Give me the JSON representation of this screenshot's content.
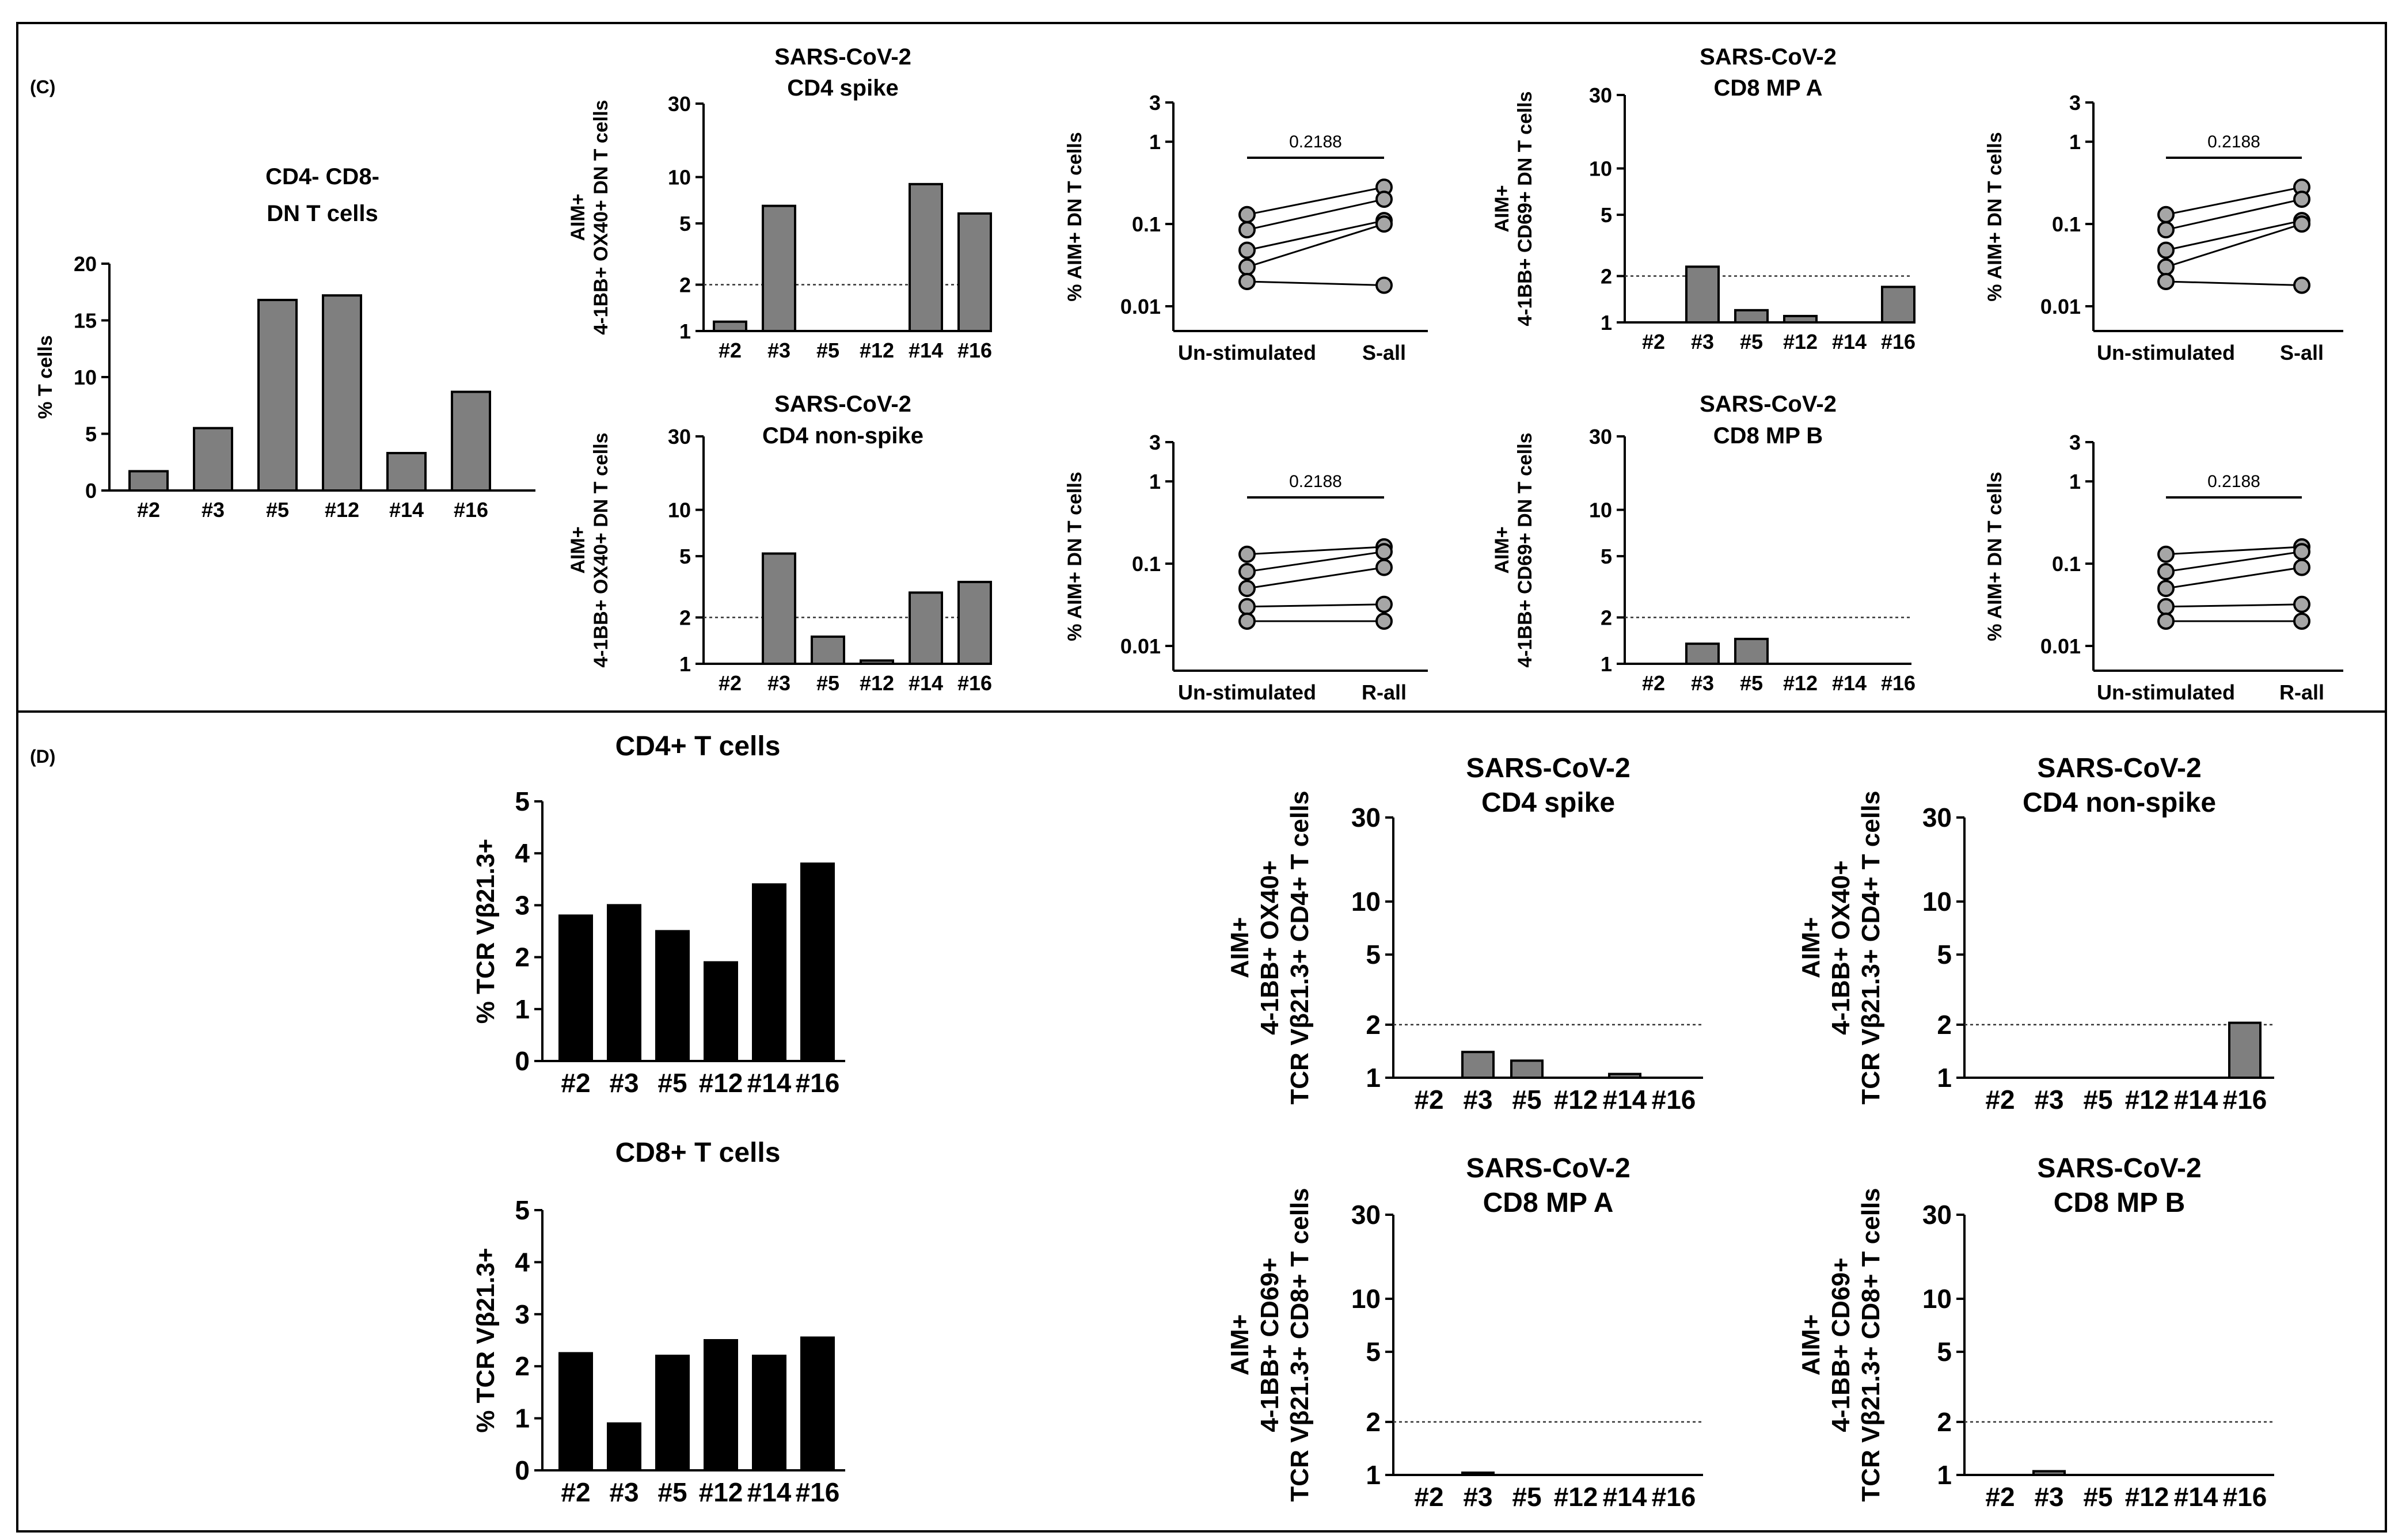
{
  "panels": {
    "c_label": "(C)",
    "d_label": "(D)"
  },
  "colors": {
    "gray_bar": "#7f7f7f",
    "black_bar": "#000000",
    "point_fill": "#a6a6a6",
    "axis": "#000000"
  },
  "chart_data": [
    {
      "id": "c_dn",
      "type": "bar",
      "title": [
        "CD4- CD8-",
        "DN T cells"
      ],
      "ylabel": [
        "% T cells"
      ],
      "yscale": "linear",
      "ylim": [
        0,
        20
      ],
      "yticks": [
        0,
        5,
        10,
        15,
        20
      ],
      "tick_labels": [
        "0",
        "5",
        "10",
        "15",
        "20"
      ],
      "categories": [
        "#2",
        "#3",
        "#5",
        "#12",
        "#14",
        "#16"
      ],
      "values": [
        1.7,
        5.5,
        16.8,
        17.2,
        3.3,
        8.7
      ]
    },
    {
      "id": "c_cd4_spike",
      "type": "bar",
      "title": [
        "SARS-CoV-2",
        "CD4 spike"
      ],
      "ylabel": [
        "AIM+",
        "4-1BB+ OX40+ DN T cells"
      ],
      "yscale": "log",
      "ylim": [
        1,
        30
      ],
      "yticks": [
        1,
        2,
        5,
        10,
        30
      ],
      "tick_labels": [
        "1",
        "2",
        "5",
        "10",
        "30"
      ],
      "threshold": 2,
      "categories": [
        "#2",
        "#3",
        "#5",
        "#12",
        "#14",
        "#16"
      ],
      "values": [
        1.15,
        6.5,
        null,
        null,
        9.0,
        5.8
      ]
    },
    {
      "id": "c_cd4_nonspike",
      "type": "bar",
      "title": [
        "SARS-CoV-2",
        "CD4 non-spike"
      ],
      "ylabel": [
        "AIM+",
        "4-1BB+ OX40+ DN T cells"
      ],
      "yscale": "log",
      "ylim": [
        1,
        30
      ],
      "yticks": [
        1,
        2,
        5,
        10,
        30
      ],
      "tick_labels": [
        "1",
        "2",
        "5",
        "10",
        "30"
      ],
      "threshold": 2,
      "categories": [
        "#2",
        "#3",
        "#5",
        "#12",
        "#14",
        "#16"
      ],
      "values": [
        null,
        5.2,
        1.5,
        1.05,
        2.9,
        3.4
      ]
    },
    {
      "id": "c_cd8_mpa",
      "type": "bar",
      "title": [
        "SARS-CoV-2",
        "CD8 MP A"
      ],
      "ylabel": [
        "AIM+",
        "4-1BB+ CD69+ DN T cells"
      ],
      "yscale": "log",
      "ylim": [
        1,
        30
      ],
      "yticks": [
        1,
        2,
        5,
        10,
        30
      ],
      "tick_labels": [
        "1",
        "2",
        "5",
        "10",
        "30"
      ],
      "threshold": 2,
      "categories": [
        "#2",
        "#3",
        "#5",
        "#12",
        "#14",
        "#16"
      ],
      "values": [
        null,
        2.3,
        1.2,
        1.1,
        null,
        1.7
      ]
    },
    {
      "id": "c_cd8_mpb",
      "type": "bar",
      "title": [
        "SARS-CoV-2",
        "CD8 MP B"
      ],
      "ylabel": [
        "AIM+",
        "4-1BB+ CD69+ DN T cells"
      ],
      "yscale": "log",
      "ylim": [
        1,
        30
      ],
      "yticks": [
        1,
        2,
        5,
        10,
        30
      ],
      "tick_labels": [
        "1",
        "2",
        "5",
        "10",
        "30"
      ],
      "threshold": 2,
      "categories": [
        "#2",
        "#3",
        "#5",
        "#12",
        "#14",
        "#16"
      ],
      "values": [
        null,
        1.35,
        1.45,
        null,
        null,
        null
      ]
    },
    {
      "id": "c_pair_s1",
      "type": "paired",
      "ylabel": [
        "% AIM+ DN T cells"
      ],
      "yscale": "log",
      "ylim": [
        0.005,
        3
      ],
      "yticks": [
        0.01,
        0.1,
        1,
        3
      ],
      "tick_labels": [
        "0.01",
        "0.1",
        "1",
        "3"
      ],
      "categories": [
        "Un-stimulated",
        "S-all"
      ],
      "pvalue": "0.2188",
      "series": [
        {
          "values": [
            0.13,
            0.28
          ]
        },
        {
          "values": [
            0.085,
            0.2
          ]
        },
        {
          "values": [
            0.048,
            0.11
          ]
        },
        {
          "values": [
            0.03,
            0.1
          ]
        },
        {
          "values": [
            0.02,
            0.018
          ]
        }
      ]
    },
    {
      "id": "c_pair_r1",
      "type": "paired",
      "ylabel": [
        "% AIM+ DN T cells"
      ],
      "yscale": "log",
      "ylim": [
        0.005,
        3
      ],
      "yticks": [
        0.01,
        0.1,
        1,
        3
      ],
      "tick_labels": [
        "0.01",
        "0.1",
        "1",
        "3"
      ],
      "categories": [
        "Un-stimulated",
        "R-all"
      ],
      "pvalue": "0.2188",
      "series": [
        {
          "values": [
            0.13,
            0.16
          ]
        },
        {
          "values": [
            0.08,
            0.14
          ]
        },
        {
          "values": [
            0.05,
            0.09
          ]
        },
        {
          "values": [
            0.03,
            0.032
          ]
        },
        {
          "values": [
            0.02,
            0.02
          ]
        }
      ]
    },
    {
      "id": "c_pair_s2",
      "type": "paired",
      "ylabel": [
        "% AIM+ DN T cells"
      ],
      "yscale": "log",
      "ylim": [
        0.005,
        3
      ],
      "yticks": [
        0.01,
        0.1,
        1,
        3
      ],
      "tick_labels": [
        "0.01",
        "0.1",
        "1",
        "3"
      ],
      "categories": [
        "Un-stimulated",
        "S-all"
      ],
      "pvalue": "0.2188",
      "series": [
        {
          "values": [
            0.13,
            0.28
          ]
        },
        {
          "values": [
            0.085,
            0.2
          ]
        },
        {
          "values": [
            0.048,
            0.11
          ]
        },
        {
          "values": [
            0.03,
            0.1
          ]
        },
        {
          "values": [
            0.02,
            0.018
          ]
        }
      ]
    },
    {
      "id": "c_pair_r2",
      "type": "paired",
      "ylabel": [
        "% AIM+ DN T cells"
      ],
      "yscale": "log",
      "ylim": [
        0.005,
        3
      ],
      "yticks": [
        0.01,
        0.1,
        1,
        3
      ],
      "tick_labels": [
        "0.01",
        "0.1",
        "1",
        "3"
      ],
      "categories": [
        "Un-stimulated",
        "R-all"
      ],
      "pvalue": "0.2188",
      "series": [
        {
          "values": [
            0.13,
            0.16
          ]
        },
        {
          "values": [
            0.08,
            0.14
          ]
        },
        {
          "values": [
            0.05,
            0.09
          ]
        },
        {
          "values": [
            0.03,
            0.032
          ]
        },
        {
          "values": [
            0.02,
            0.02
          ]
        }
      ]
    },
    {
      "id": "d_cd4",
      "type": "bar",
      "title": [
        "CD4+ T cells"
      ],
      "ylabel": [
        "% TCR Vβ21.3+"
      ],
      "yscale": "linear",
      "ylim": [
        0,
        5
      ],
      "yticks": [
        0,
        1,
        2,
        3,
        4,
        5
      ],
      "tick_labels": [
        "0",
        "1",
        "2",
        "3",
        "4",
        "5"
      ],
      "categories": [
        "#2",
        "#3",
        "#5",
        "#12",
        "#14",
        "#16"
      ],
      "values": [
        2.8,
        3.0,
        2.5,
        1.9,
        3.4,
        3.8
      ]
    },
    {
      "id": "d_cd8",
      "type": "bar",
      "title": [
        "CD8+ T cells"
      ],
      "ylabel": [
        "% TCR Vβ21.3+"
      ],
      "yscale": "linear",
      "ylim": [
        0,
        5
      ],
      "yticks": [
        0,
        1,
        2,
        3,
        4,
        5
      ],
      "tick_labels": [
        "0",
        "1",
        "2",
        "3",
        "4",
        "5"
      ],
      "categories": [
        "#2",
        "#3",
        "#5",
        "#12",
        "#14",
        "#16"
      ],
      "values": [
        2.25,
        0.9,
        2.2,
        2.5,
        2.2,
        2.55
      ]
    },
    {
      "id": "d_cd4_spike",
      "type": "bar",
      "title": [
        "SARS-CoV-2",
        "CD4 spike"
      ],
      "ylabel": [
        "AIM+",
        "4-1BB+ OX40+",
        "TCR Vβ21.3+ CD4+ T cells"
      ],
      "yscale": "log",
      "ylim": [
        1,
        30
      ],
      "yticks": [
        1,
        2,
        5,
        10,
        30
      ],
      "tick_labels": [
        "1",
        "2",
        "5",
        "10",
        "30"
      ],
      "threshold": 2,
      "categories": [
        "#2",
        "#3",
        "#5",
        "#12",
        "#14",
        "#16"
      ],
      "values": [
        null,
        1.4,
        1.25,
        null,
        1.05,
        null
      ]
    },
    {
      "id": "d_cd4_nonspike",
      "type": "bar",
      "title": [
        "SARS-CoV-2",
        "CD4 non-spike"
      ],
      "ylabel": [
        "AIM+",
        "4-1BB+ OX40+",
        "TCR Vβ21.3+ CD4+ T cells"
      ],
      "yscale": "log",
      "ylim": [
        1,
        30
      ],
      "yticks": [
        1,
        2,
        5,
        10,
        30
      ],
      "tick_labels": [
        "1",
        "2",
        "5",
        "10",
        "30"
      ],
      "threshold": 2,
      "categories": [
        "#2",
        "#3",
        "#5",
        "#12",
        "#14",
        "#16"
      ],
      "values": [
        null,
        null,
        null,
        null,
        null,
        2.05
      ]
    },
    {
      "id": "d_cd8_mpa",
      "type": "bar",
      "title": [
        "SARS-CoV-2",
        "CD8 MP A"
      ],
      "ylabel": [
        "AIM+",
        "4-1BB+ CD69+",
        "TCR Vβ21.3+ CD8+ T cells"
      ],
      "yscale": "log",
      "ylim": [
        1,
        30
      ],
      "yticks": [
        1,
        2,
        5,
        10,
        30
      ],
      "tick_labels": [
        "1",
        "2",
        "5",
        "10",
        "30"
      ],
      "threshold": 2,
      "categories": [
        "#2",
        "#3",
        "#5",
        "#12",
        "#14",
        "#16"
      ],
      "values": [
        null,
        1.03,
        null,
        null,
        null,
        null
      ]
    },
    {
      "id": "d_cd8_mpb",
      "type": "bar",
      "title": [
        "SARS-CoV-2",
        "CD8 MP B"
      ],
      "ylabel": [
        "AIM+",
        "4-1BB+ CD69+",
        "TCR Vβ21.3+ CD8+ T cells"
      ],
      "yscale": "log",
      "ylim": [
        1,
        30
      ],
      "yticks": [
        1,
        2,
        5,
        10,
        30
      ],
      "tick_labels": [
        "1",
        "2",
        "5",
        "10",
        "30"
      ],
      "threshold": 2,
      "categories": [
        "#2",
        "#3",
        "#5",
        "#12",
        "#14",
        "#16"
      ],
      "values": [
        null,
        1.05,
        null,
        null,
        null,
        null
      ]
    }
  ]
}
